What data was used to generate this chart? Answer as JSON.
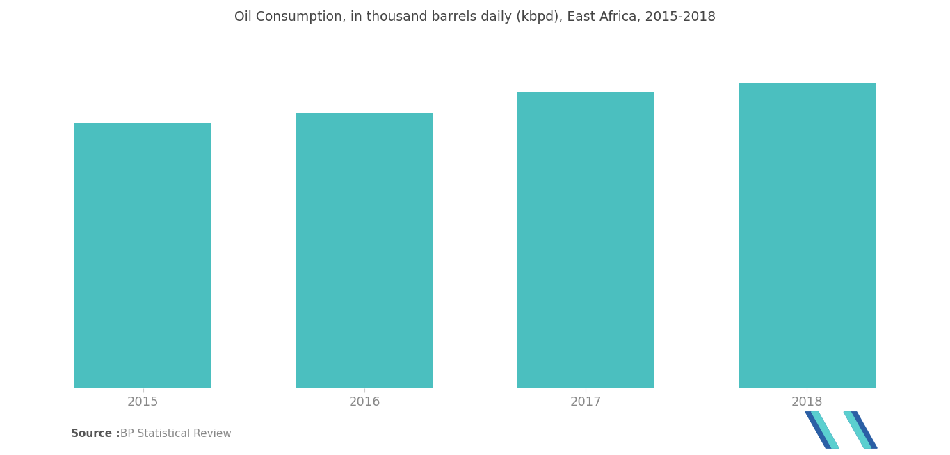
{
  "title": "Oil Consumption, in thousand barrels daily (kbpd), East Africa, 2015-2018",
  "categories": [
    "2015",
    "2016",
    "2017",
    "2018"
  ],
  "values": [
    490,
    510,
    548,
    565
  ],
  "bar_color": "#4BBFBF",
  "background_color": "#ffffff",
  "ylim": [
    0,
    640
  ],
  "bar_width": 0.62,
  "source_bold": "Source :",
  "source_normal": " BP Statistical Review",
  "title_fontsize": 13.5,
  "tick_fontsize": 13,
  "source_fontsize": 11
}
